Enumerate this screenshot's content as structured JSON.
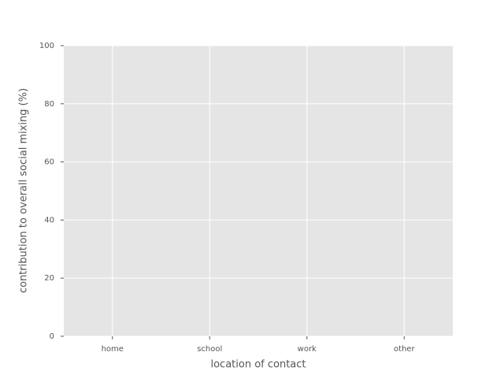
{
  "chart_data": {
    "type": "bar",
    "xlabel": "location of contact",
    "ylabel": "contribution to overall social mixing (%)",
    "categories": [
      "home",
      "school",
      "work",
      "other"
    ],
    "ylim": [
      0,
      100
    ],
    "yticks": [
      0,
      20,
      40,
      60,
      80,
      100
    ],
    "grid": true
  }
}
